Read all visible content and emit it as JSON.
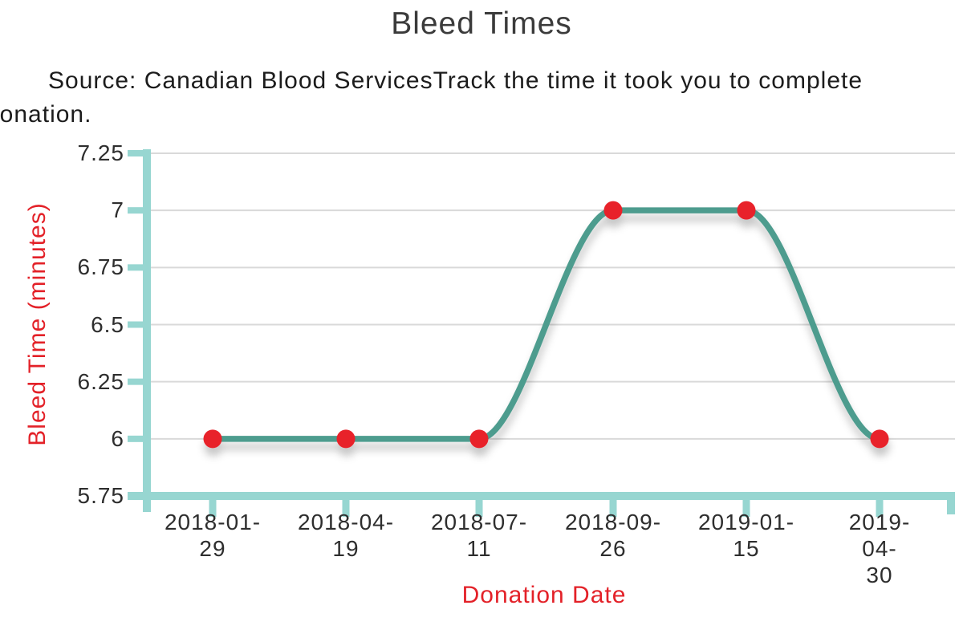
{
  "title": "Bleed Times",
  "subtitle": {
    "line1": "Source: Canadian Blood ServicesTrack the time it took you to complete",
    "line2": "donation."
  },
  "chart_data": {
    "type": "line",
    "line_style": "spline",
    "x": [
      "2018-01-29",
      "2018-04-19",
      "2018-07-11",
      "2018-09-26",
      "2019-01-15",
      "2019-04-30"
    ],
    "values": [
      6,
      6,
      6,
      7,
      7,
      6
    ],
    "title": "Bleed Times",
    "xlabel": "Donation Date",
    "ylabel": "Bleed Time (minutes)",
    "ylim": [
      5.75,
      7.25
    ],
    "yticks": [
      5.75,
      6,
      6.25,
      6.5,
      6.75,
      7,
      7.25
    ],
    "grid": true,
    "legend": "none",
    "line_color": "#4e9c8e",
    "marker_color": "#e8202a",
    "axis_color": "#97d6d1",
    "grid_color": "#d9d9d9",
    "label_color": "#e32128"
  }
}
